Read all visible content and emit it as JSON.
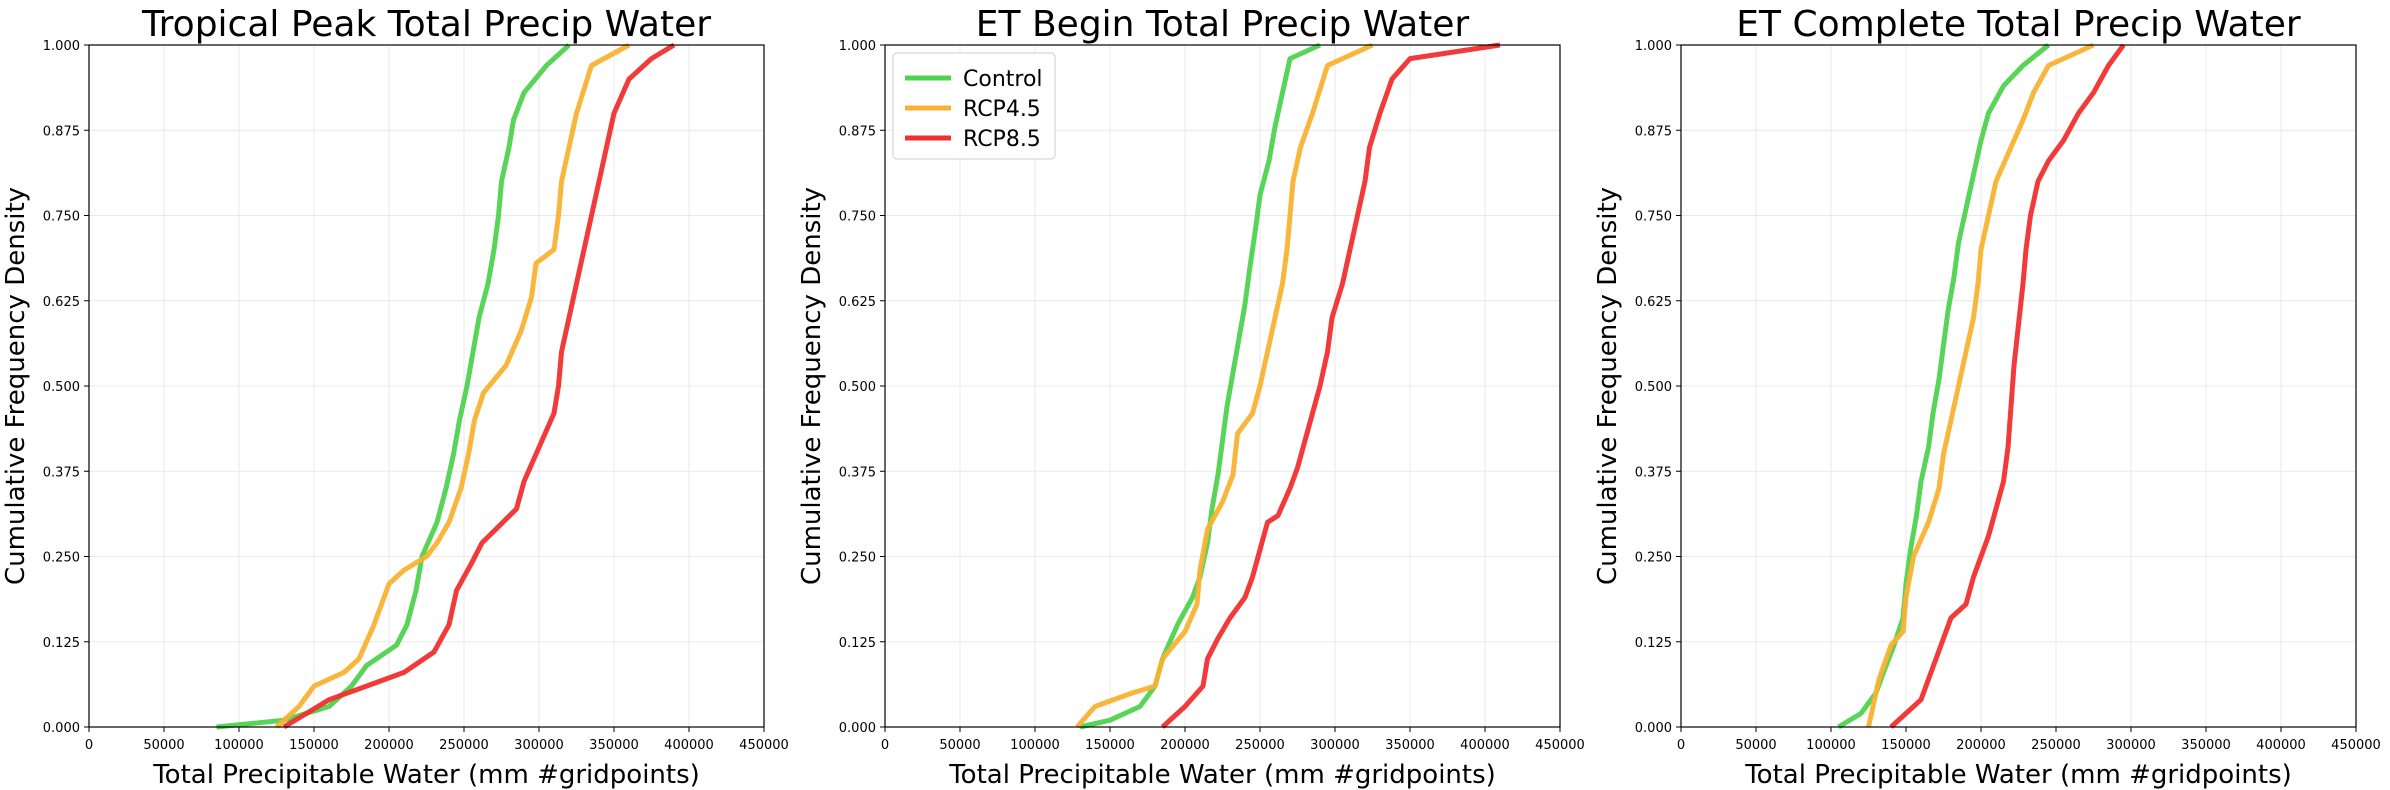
{
  "chart_data": [
    {
      "type": "line",
      "title": "Tropical Peak Total Precip Water",
      "xlabel": "Total Precipitable Water (mm #gridpoints)",
      "ylabel": "Cumulative Frequency Density",
      "xlim": [
        0,
        450000
      ],
      "ylim": [
        0,
        1
      ],
      "xticks": [
        "0",
        "50000",
        "100000",
        "150000",
        "200000",
        "250000",
        "300000",
        "350000",
        "400000",
        "450000"
      ],
      "yticks": [
        "0.000",
        "0.125",
        "0.250",
        "0.375",
        "0.500",
        "0.625",
        "0.750",
        "0.875",
        "1.000"
      ],
      "grid": true,
      "legend": null,
      "series": [
        {
          "name": "Control",
          "color": "#4fd34f",
          "points": [
            [
              85000,
              0
            ],
            [
              130000,
              0.01
            ],
            [
              160000,
              0.03
            ],
            [
              175000,
              0.06
            ],
            [
              185000,
              0.09
            ],
            [
              205000,
              0.12
            ],
            [
              212000,
              0.15
            ],
            [
              218000,
              0.2
            ],
            [
              222000,
              0.25
            ],
            [
              232000,
              0.3
            ],
            [
              238000,
              0.35
            ],
            [
              243000,
              0.4
            ],
            [
              247000,
              0.45
            ],
            [
              252000,
              0.5
            ],
            [
              256000,
              0.55
            ],
            [
              260000,
              0.6
            ],
            [
              266000,
              0.65
            ],
            [
              270000,
              0.7
            ],
            [
              273000,
              0.75
            ],
            [
              275000,
              0.8
            ],
            [
              280000,
              0.85
            ],
            [
              283000,
              0.89
            ],
            [
              290000,
              0.93
            ],
            [
              305000,
              0.97
            ],
            [
              320000,
              1.0
            ]
          ]
        },
        {
          "name": "RCP4.5",
          "color": "#f9b233",
          "points": [
            [
              125000,
              0
            ],
            [
              140000,
              0.03
            ],
            [
              150000,
              0.06
            ],
            [
              170000,
              0.08
            ],
            [
              180000,
              0.1
            ],
            [
              190000,
              0.15
            ],
            [
              200000,
              0.21
            ],
            [
              210000,
              0.23
            ],
            [
              225000,
              0.25
            ],
            [
              232000,
              0.27
            ],
            [
              240000,
              0.3
            ],
            [
              248000,
              0.35
            ],
            [
              253000,
              0.4
            ],
            [
              257000,
              0.45
            ],
            [
              263000,
              0.49
            ],
            [
              278000,
              0.53
            ],
            [
              288000,
              0.58
            ],
            [
              295000,
              0.63
            ],
            [
              298000,
              0.68
            ],
            [
              310000,
              0.7
            ],
            [
              313000,
              0.75
            ],
            [
              315000,
              0.8
            ],
            [
              320000,
              0.85
            ],
            [
              325000,
              0.9
            ],
            [
              335000,
              0.97
            ],
            [
              360000,
              1.0
            ]
          ]
        },
        {
          "name": "RCP8.5",
          "color": "#f22f2f",
          "points": [
            [
              130000,
              0
            ],
            [
              160000,
              0.04
            ],
            [
              185000,
              0.06
            ],
            [
              210000,
              0.08
            ],
            [
              230000,
              0.11
            ],
            [
              240000,
              0.15
            ],
            [
              245000,
              0.2
            ],
            [
              255000,
              0.24
            ],
            [
              262000,
              0.27
            ],
            [
              285000,
              0.32
            ],
            [
              290000,
              0.36
            ],
            [
              300000,
              0.41
            ],
            [
              310000,
              0.46
            ],
            [
              313000,
              0.5
            ],
            [
              315000,
              0.55
            ],
            [
              320000,
              0.6
            ],
            [
              325000,
              0.65
            ],
            [
              330000,
              0.7
            ],
            [
              335000,
              0.75
            ],
            [
              340000,
              0.8
            ],
            [
              345000,
              0.85
            ],
            [
              350000,
              0.9
            ],
            [
              360000,
              0.95
            ],
            [
              375000,
              0.98
            ],
            [
              390000,
              1.0
            ]
          ]
        }
      ]
    },
    {
      "type": "line",
      "title": "ET Begin Total Precip Water",
      "xlabel": "Total Precipitable Water (mm #gridpoints)",
      "ylabel": "Cumulative Frequency Density",
      "xlim": [
        0,
        450000
      ],
      "ylim": [
        0,
        1
      ],
      "xticks": [
        "0",
        "50000",
        "100000",
        "150000",
        "200000",
        "250000",
        "300000",
        "350000",
        "400000",
        "450000"
      ],
      "yticks": [
        "0.000",
        "0.125",
        "0.250",
        "0.375",
        "0.500",
        "0.625",
        "0.750",
        "0.875",
        "1.000"
      ],
      "grid": true,
      "legend": {
        "position": "top-left",
        "entries": [
          "Control",
          "RCP4.5",
          "RCP8.5"
        ]
      },
      "series": [
        {
          "name": "Control",
          "color": "#4fd34f",
          "points": [
            [
              130000,
              0
            ],
            [
              150000,
              0.01
            ],
            [
              170000,
              0.03
            ],
            [
              180000,
              0.06
            ],
            [
              185000,
              0.1
            ],
            [
              195000,
              0.15
            ],
            [
              205000,
              0.19
            ],
            [
              210000,
              0.22
            ],
            [
              215000,
              0.27
            ],
            [
              218000,
              0.32
            ],
            [
              222000,
              0.37
            ],
            [
              225000,
              0.42
            ],
            [
              228000,
              0.47
            ],
            [
              232000,
              0.52
            ],
            [
              236000,
              0.57
            ],
            [
              240000,
              0.62
            ],
            [
              243000,
              0.67
            ],
            [
              247000,
              0.73
            ],
            [
              250000,
              0.78
            ],
            [
              256000,
              0.83
            ],
            [
              260000,
              0.88
            ],
            [
              265000,
              0.93
            ],
            [
              270000,
              0.98
            ],
            [
              290000,
              1.0
            ]
          ]
        },
        {
          "name": "RCP4.5",
          "color": "#f9b233",
          "points": [
            [
              128000,
              0
            ],
            [
              140000,
              0.03
            ],
            [
              165000,
              0.05
            ],
            [
              180000,
              0.06
            ],
            [
              185000,
              0.1
            ],
            [
              200000,
              0.14
            ],
            [
              208000,
              0.18
            ],
            [
              210000,
              0.23
            ],
            [
              215000,
              0.29
            ],
            [
              225000,
              0.33
            ],
            [
              232000,
              0.37
            ],
            [
              235000,
              0.43
            ],
            [
              245000,
              0.46
            ],
            [
              250000,
              0.5
            ],
            [
              255000,
              0.55
            ],
            [
              260000,
              0.6
            ],
            [
              265000,
              0.65
            ],
            [
              268000,
              0.7
            ],
            [
              270000,
              0.75
            ],
            [
              272000,
              0.8
            ],
            [
              277000,
              0.85
            ],
            [
              285000,
              0.9
            ],
            [
              295000,
              0.97
            ],
            [
              325000,
              1.0
            ]
          ]
        },
        {
          "name": "RCP8.5",
          "color": "#f22f2f",
          "points": [
            [
              185000,
              0
            ],
            [
              200000,
              0.03
            ],
            [
              212000,
              0.06
            ],
            [
              215000,
              0.1
            ],
            [
              222000,
              0.13
            ],
            [
              230000,
              0.16
            ],
            [
              240000,
              0.19
            ],
            [
              245000,
              0.22
            ],
            [
              250000,
              0.26
            ],
            [
              255000,
              0.3
            ],
            [
              262000,
              0.31
            ],
            [
              270000,
              0.35
            ],
            [
              275000,
              0.38
            ],
            [
              280000,
              0.42
            ],
            [
              285000,
              0.46
            ],
            [
              290000,
              0.5
            ],
            [
              295000,
              0.55
            ],
            [
              298000,
              0.6
            ],
            [
              305000,
              0.65
            ],
            [
              310000,
              0.7
            ],
            [
              315000,
              0.75
            ],
            [
              320000,
              0.8
            ],
            [
              323000,
              0.85
            ],
            [
              330000,
              0.9
            ],
            [
              338000,
              0.95
            ],
            [
              350000,
              0.98
            ],
            [
              410000,
              1.0
            ]
          ]
        }
      ]
    },
    {
      "type": "line",
      "title": "ET Complete Total Precip Water",
      "xlabel": "Total Precipitable Water (mm #gridpoints)",
      "ylabel": "Cumulative Frequency Density",
      "xlim": [
        0,
        450000
      ],
      "ylim": [
        0,
        1
      ],
      "xticks": [
        "0",
        "50000",
        "100000",
        "150000",
        "200000",
        "250000",
        "300000",
        "350000",
        "400000",
        "450000"
      ],
      "yticks": [
        "0.000",
        "0.125",
        "0.250",
        "0.375",
        "0.500",
        "0.625",
        "0.750",
        "0.875",
        "1.000"
      ],
      "grid": true,
      "legend": null,
      "series": [
        {
          "name": "Control",
          "color": "#4fd34f",
          "points": [
            [
              105000,
              0
            ],
            [
              120000,
              0.02
            ],
            [
              130000,
              0.05
            ],
            [
              135000,
              0.08
            ],
            [
              142000,
              0.12
            ],
            [
              148000,
              0.16
            ],
            [
              150000,
              0.21
            ],
            [
              153000,
              0.26
            ],
            [
              157000,
              0.31
            ],
            [
              160000,
              0.36
            ],
            [
              165000,
              0.41
            ],
            [
              168000,
              0.46
            ],
            [
              172000,
              0.51
            ],
            [
              175000,
              0.56
            ],
            [
              178000,
              0.61
            ],
            [
              182000,
              0.66
            ],
            [
              185000,
              0.71
            ],
            [
              190000,
              0.76
            ],
            [
              195000,
              0.81
            ],
            [
              200000,
              0.86
            ],
            [
              205000,
              0.9
            ],
            [
              215000,
              0.94
            ],
            [
              228000,
              0.97
            ],
            [
              245000,
              1.0
            ]
          ]
        },
        {
          "name": "RCP4.5",
          "color": "#f9b233",
          "points": [
            [
              125000,
              0
            ],
            [
              128000,
              0.03
            ],
            [
              132000,
              0.07
            ],
            [
              140000,
              0.12
            ],
            [
              148000,
              0.14
            ],
            [
              150000,
              0.19
            ],
            [
              155000,
              0.25
            ],
            [
              165000,
              0.3
            ],
            [
              172000,
              0.35
            ],
            [
              175000,
              0.4
            ],
            [
              180000,
              0.45
            ],
            [
              185000,
              0.5
            ],
            [
              190000,
              0.55
            ],
            [
              195000,
              0.6
            ],
            [
              198000,
              0.65
            ],
            [
              200000,
              0.7
            ],
            [
              205000,
              0.75
            ],
            [
              210000,
              0.8
            ],
            [
              220000,
              0.85
            ],
            [
              228000,
              0.89
            ],
            [
              235000,
              0.93
            ],
            [
              245000,
              0.97
            ],
            [
              275000,
              1.0
            ]
          ]
        },
        {
          "name": "RCP8.5",
          "color": "#f22f2f",
          "points": [
            [
              140000,
              0
            ],
            [
              150000,
              0.02
            ],
            [
              160000,
              0.04
            ],
            [
              165000,
              0.07
            ],
            [
              170000,
              0.1
            ],
            [
              175000,
              0.13
            ],
            [
              180000,
              0.16
            ],
            [
              190000,
              0.18
            ],
            [
              195000,
              0.22
            ],
            [
              200000,
              0.25
            ],
            [
              205000,
              0.28
            ],
            [
              210000,
              0.32
            ],
            [
              215000,
              0.36
            ],
            [
              218000,
              0.41
            ],
            [
              220000,
              0.47
            ],
            [
              222000,
              0.53
            ],
            [
              225000,
              0.59
            ],
            [
              228000,
              0.65
            ],
            [
              230000,
              0.7
            ],
            [
              233000,
              0.75
            ],
            [
              238000,
              0.8
            ],
            [
              245000,
              0.83
            ],
            [
              255000,
              0.86
            ],
            [
              265000,
              0.9
            ],
            [
              275000,
              0.93
            ],
            [
              285000,
              0.97
            ],
            [
              295000,
              1.0
            ]
          ]
        }
      ]
    }
  ]
}
